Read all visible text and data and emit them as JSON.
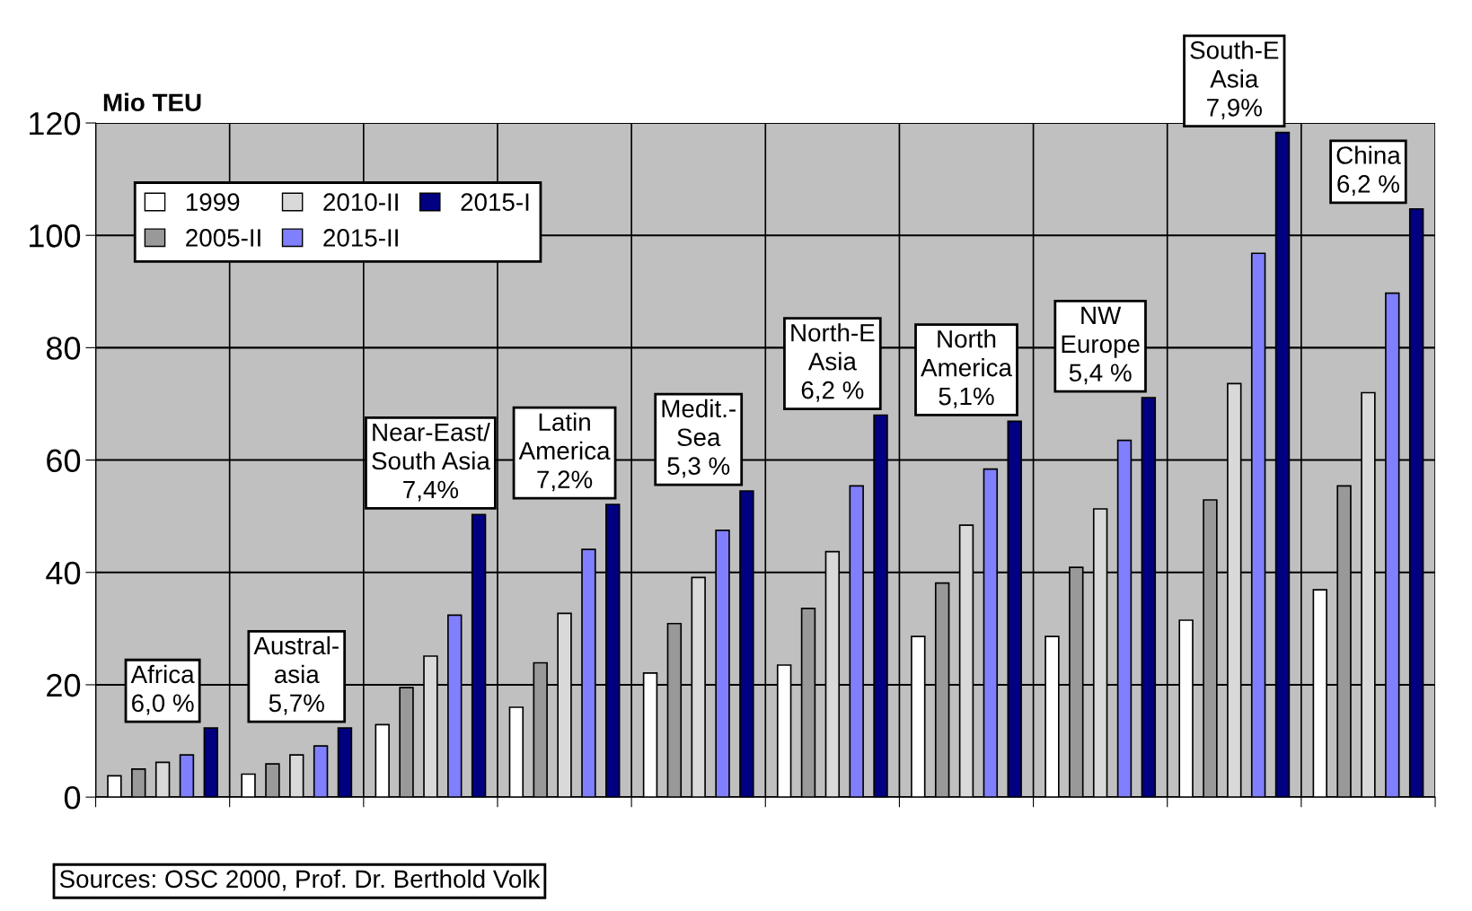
{
  "chart_data": {
    "type": "bar",
    "ylabel": "Mio TEU",
    "categories": [
      "Africa\n6,0 %",
      "Austral-\nasia\n5,7%",
      "Near-East/\nSouth Asia\n7,4%",
      "Latin\nAmerica\n7,2%",
      "Medit.-\nSea\n5,3 %",
      "North-E\nAsia\n6,2 %",
      "North\nAmerica\n5,1%",
      "NW\nEurope\n5,4 %",
      "South-E\nAsia\n7,9%",
      "China\n6,2 %"
    ],
    "series": [
      {
        "name": "1999",
        "color": "#ffffff",
        "values": [
          3.8,
          4.1,
          12.9,
          16.0,
          22.1,
          23.5,
          28.6,
          28.6,
          31.5,
          36.9
        ]
      },
      {
        "name": "2005-II",
        "color": "#999999",
        "values": [
          5.0,
          5.9,
          19.5,
          23.9,
          30.9,
          33.6,
          38.1,
          40.9,
          52.9,
          55.4
        ]
      },
      {
        "name": "2010-II",
        "color": "#d9d9d9",
        "values": [
          6.2,
          7.5,
          25.1,
          32.7,
          39.1,
          43.7,
          48.4,
          51.3,
          73.6,
          72.0
        ]
      },
      {
        "name": "2015-II",
        "color": "#8080ff",
        "values": [
          7.5,
          9.1,
          32.4,
          44.1,
          47.5,
          55.4,
          58.4,
          63.5,
          96.8,
          89.7
        ]
      },
      {
        "name": "2015-I",
        "color": "#000080",
        "values": [
          12.3,
          12.3,
          50.3,
          52.1,
          54.5,
          68.0,
          66.9,
          71.1,
          118.3,
          104.7
        ]
      }
    ],
    "ylim": [
      0,
      120
    ],
    "yticks": [
      0,
      20,
      40,
      60,
      80,
      100,
      120
    ],
    "grid": true,
    "legend": "top left",
    "annotations": [
      "Sources: OSC 2000, Prof. Dr. Berthold Volk"
    ]
  }
}
